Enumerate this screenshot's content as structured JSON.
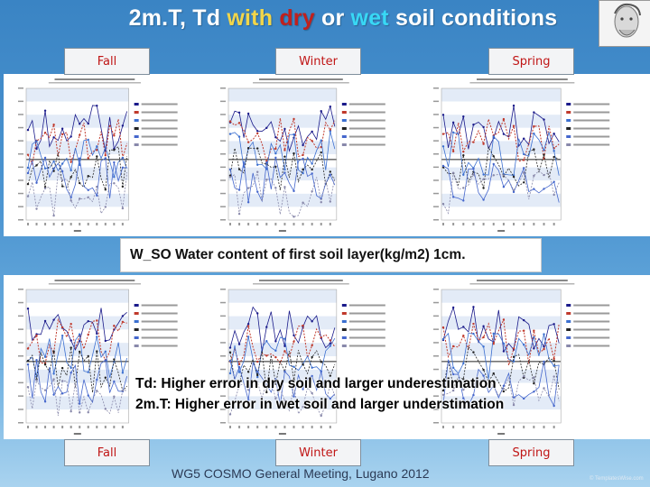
{
  "title": {
    "part1": "2m.T, Td ",
    "with": "with",
    "space1": " ",
    "dry": "dry",
    "or": " or ",
    "wet": "wet",
    "rest": " soil conditions"
  },
  "labels_top": [
    "Fall",
    "Winter",
    "Spring"
  ],
  "labels_bottom": [
    "Fall",
    "Winter",
    "Spring"
  ],
  "caption": "W_SO Water content of first soil layer(kg/m2) 1cm.",
  "notes": [
    "Td: Higher error in dry soil and larger underestimation",
    "2m.T: Higher error in wet soil and larger understimation"
  ],
  "footer": "WG5 COSMO General Meeting, Lugano 2012",
  "watermark": "© TemplatesWise.com",
  "colors": {
    "title": "#ffffff",
    "dry": "#c0201d",
    "wet": "#38d8f5",
    "with": "#f2d64a",
    "label_text": "#c01515",
    "series": [
      "#1a1a8a",
      "#c0392b",
      "#3b6fd0",
      "#222222",
      "#4466cc",
      "#8888aa"
    ]
  }
}
